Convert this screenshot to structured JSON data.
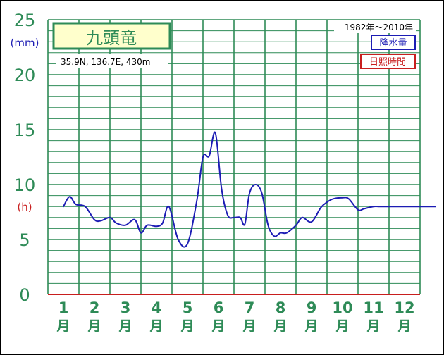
{
  "chart_data": {
    "type": "line",
    "title": "九頭竜",
    "location": "35.9N,  136.7E,  430m",
    "period": "1982年〜2010年",
    "legend": [
      {
        "label": "降水量",
        "color": "#1c1cb4"
      },
      {
        "label": "日照時間",
        "color": "#c81e1e"
      }
    ],
    "y_unit_precip": "(mm)",
    "y_unit_sun": "(h)",
    "ylim": [
      0,
      25
    ],
    "y_ticks": [
      "0",
      "5",
      "10",
      "15",
      "20",
      "25"
    ],
    "months": [
      "1",
      "2",
      "3",
      "4",
      "5",
      "6",
      "7",
      "8",
      "9",
      "10",
      "11",
      "12"
    ],
    "month_suffix": "月",
    "x_months": [
      0.5,
      0.7,
      0.9,
      1.2,
      1.5,
      1.7,
      2.0,
      2.2,
      2.5,
      2.8,
      3.0,
      3.2,
      3.5,
      3.7,
      3.9,
      4.2,
      4.5,
      4.8,
      5.0,
      5.2,
      5.4,
      5.6,
      5.8,
      6.0,
      6.2,
      6.35,
      6.5,
      6.7,
      6.9,
      7.1,
      7.3,
      7.5,
      7.7,
      8.0,
      8.2,
      8.5,
      8.8,
      9.0,
      9.2,
      9.5,
      9.7,
      10.0,
      10.2,
      10.5,
      10.7,
      11.0,
      11.2,
      11.4,
      11.7,
      12.0,
      12.2,
      12.5
    ],
    "precip": [
      8.0,
      8.9,
      8.2,
      8.0,
      6.8,
      6.7,
      7.0,
      6.5,
      6.3,
      6.8,
      5.6,
      6.3,
      6.2,
      6.5,
      8.0,
      5.0,
      4.6,
      8.5,
      12.5,
      12.6,
      14.7,
      9.6,
      7.2,
      7.0,
      7.0,
      6.4,
      9.2,
      10.0,
      9.2,
      6.3,
      5.3,
      5.6,
      5.6,
      6.3,
      7.0,
      6.6,
      7.9,
      8.4,
      8.7,
      8.8,
      8.7,
      7.7,
      7.8,
      8.0,
      8.0,
      8.0,
      8.0,
      8.0,
      8.0,
      8.0,
      8.0,
      8.0
    ]
  }
}
